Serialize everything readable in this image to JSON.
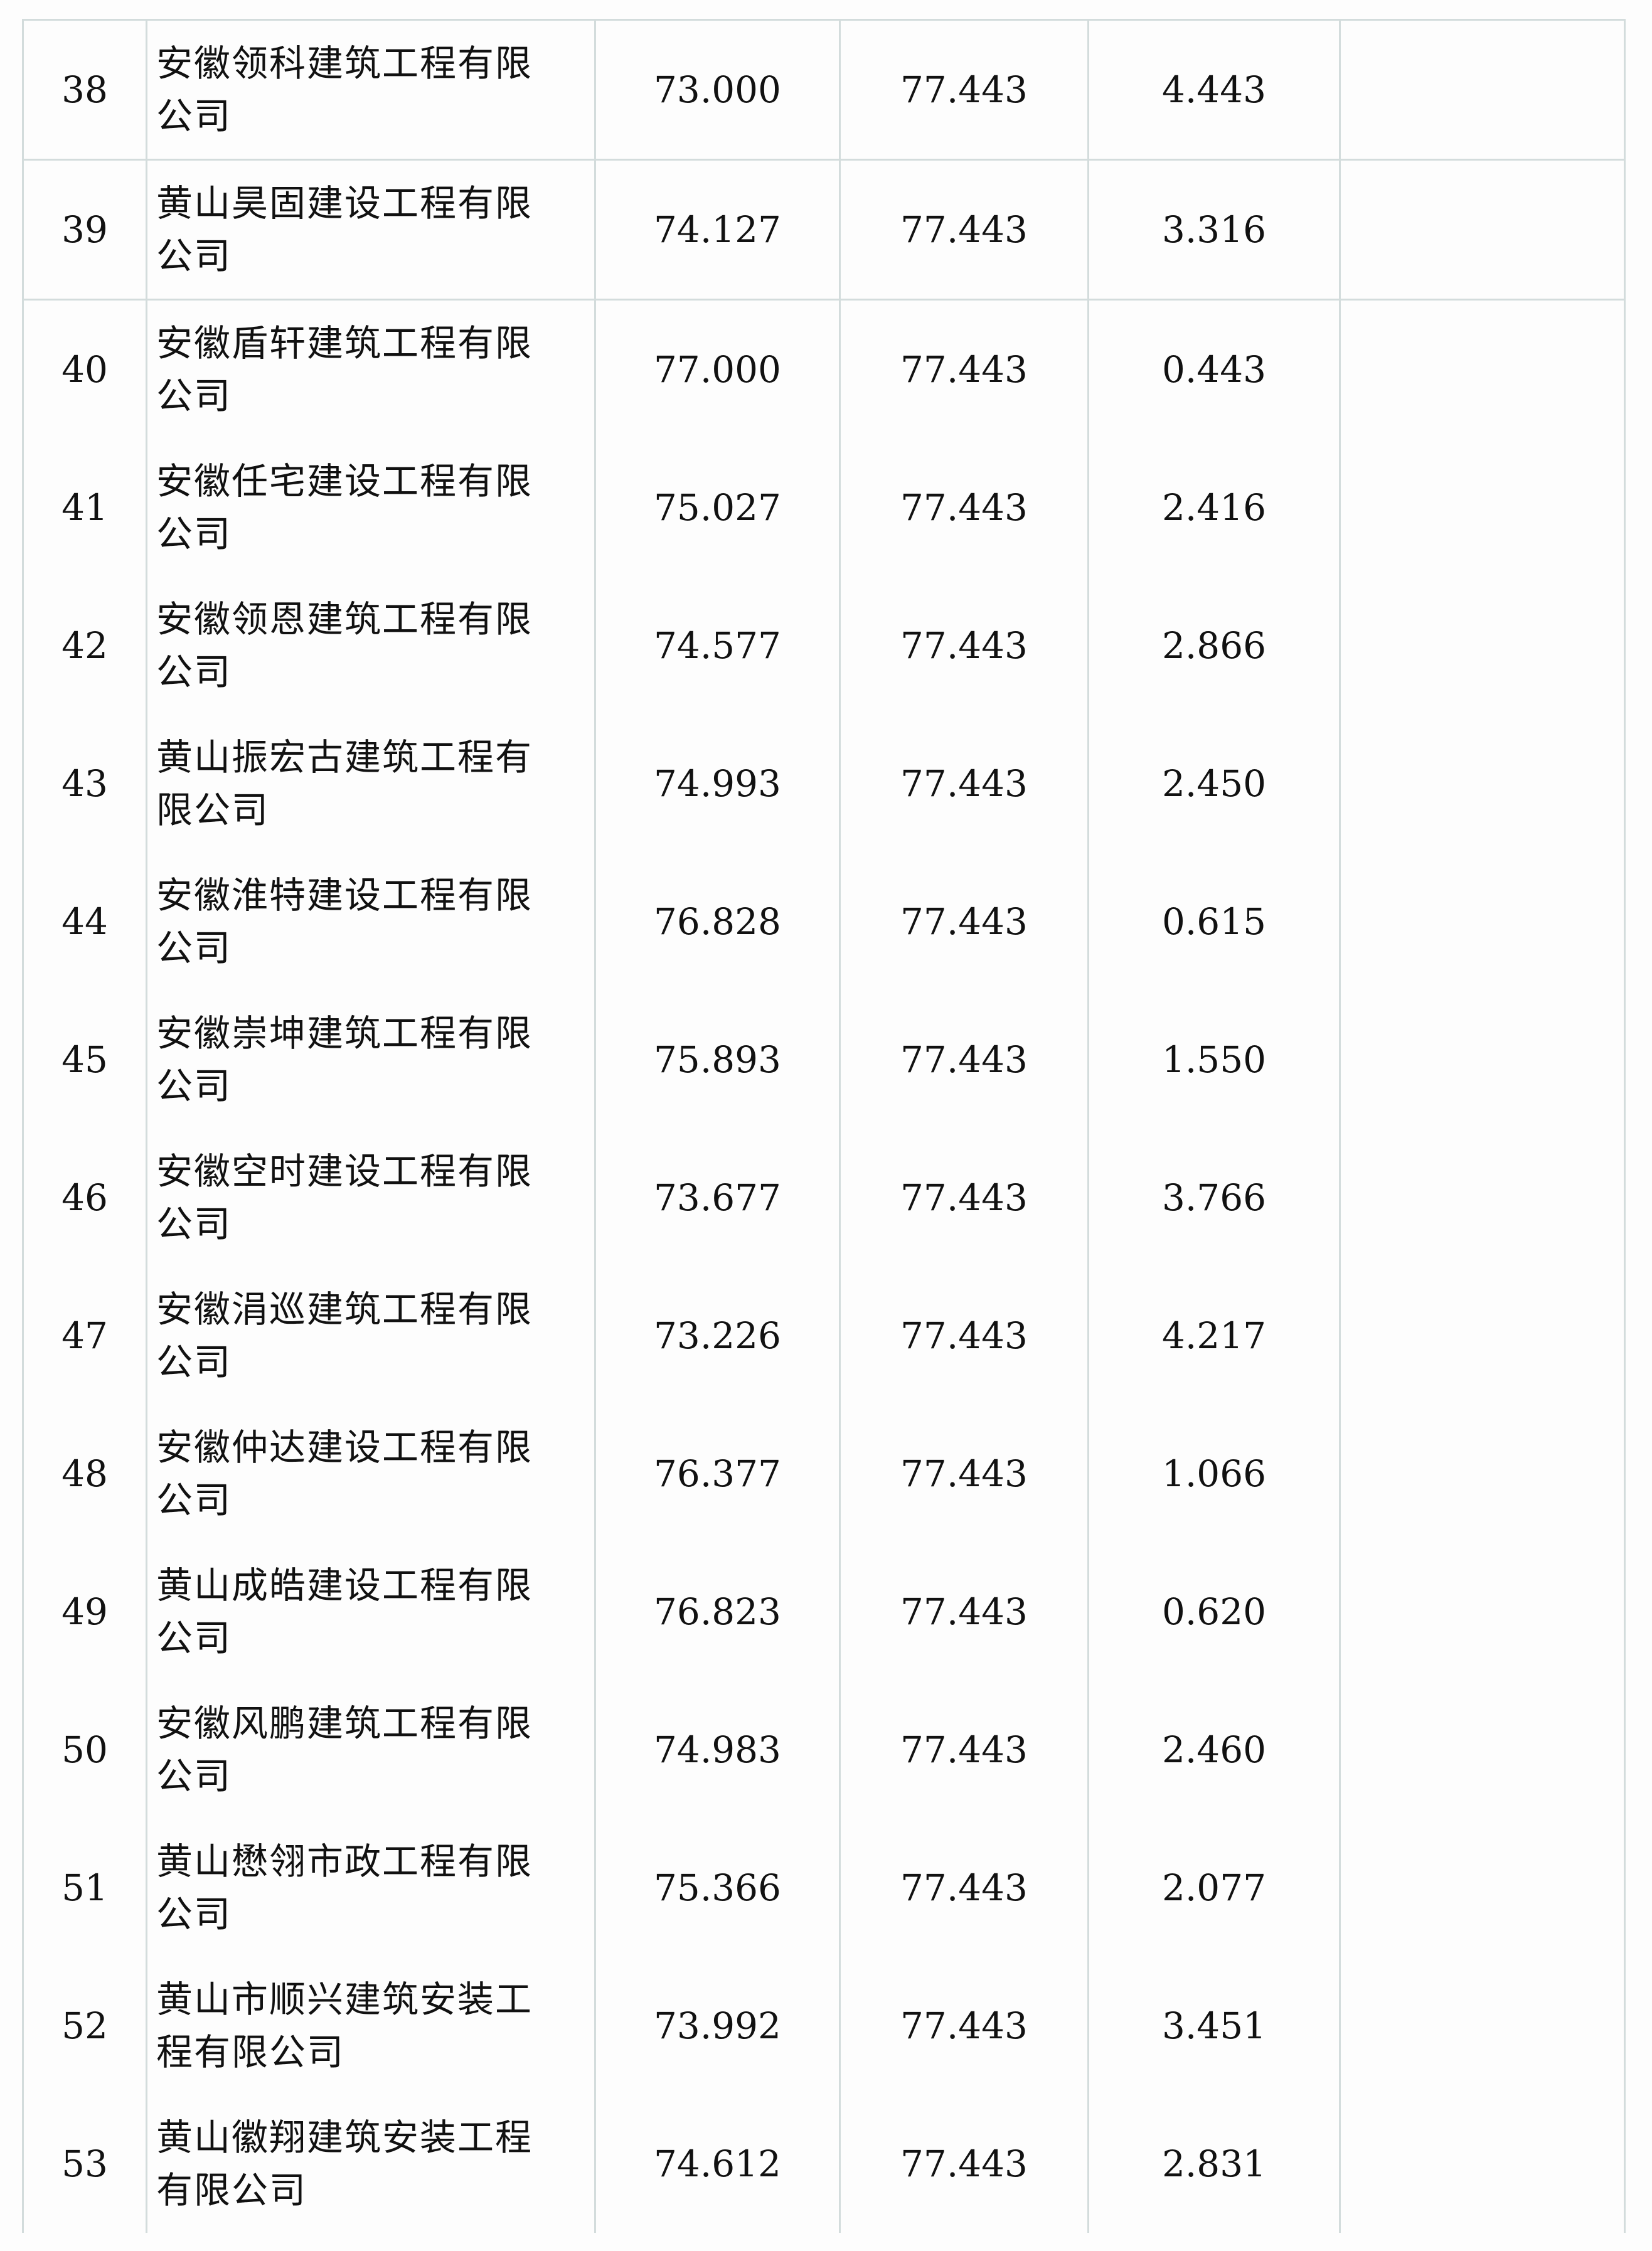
{
  "rows": [
    {
      "no": "38",
      "name": "安徽领科建筑工程有限公司",
      "score": "73.000",
      "base": "77.443",
      "diff": "4.443",
      "note": ""
    },
    {
      "no": "39",
      "name": "黄山昊固建设工程有限公司",
      "score": "74.127",
      "base": "77.443",
      "diff": "3.316",
      "note": ""
    },
    {
      "no": "40",
      "name": "安徽盾轩建筑工程有限公司",
      "score": "77.000",
      "base": "77.443",
      "diff": "0.443",
      "note": ""
    },
    {
      "no": "41",
      "name": "安徽任宅建设工程有限公司",
      "score": "75.027",
      "base": "77.443",
      "diff": "2.416",
      "note": ""
    },
    {
      "no": "42",
      "name": "安徽领恩建筑工程有限公司",
      "score": "74.577",
      "base": "77.443",
      "diff": "2.866",
      "note": ""
    },
    {
      "no": "43",
      "name": "黄山振宏古建筑工程有限公司",
      "score": "74.993",
      "base": "77.443",
      "diff": "2.450",
      "note": ""
    },
    {
      "no": "44",
      "name": "安徽淮特建设工程有限公司",
      "score": "76.828",
      "base": "77.443",
      "diff": "0.615",
      "note": ""
    },
    {
      "no": "45",
      "name": "安徽崇坤建筑工程有限公司",
      "score": "75.893",
      "base": "77.443",
      "diff": "1.550",
      "note": ""
    },
    {
      "no": "46",
      "name": "安徽空时建设工程有限公司",
      "score": "73.677",
      "base": "77.443",
      "diff": "3.766",
      "note": ""
    },
    {
      "no": "47",
      "name": "安徽涓巡建筑工程有限公司",
      "score": "73.226",
      "base": "77.443",
      "diff": "4.217",
      "note": ""
    },
    {
      "no": "48",
      "name": "安徽仲达建设工程有限公司",
      "score": "76.377",
      "base": "77.443",
      "diff": "1.066",
      "note": ""
    },
    {
      "no": "49",
      "name": "黄山成皓建设工程有限公司",
      "score": "76.823",
      "base": "77.443",
      "diff": "0.620",
      "note": ""
    },
    {
      "no": "50",
      "name": "安徽风鹏建筑工程有限公司",
      "score": "74.983",
      "base": "77.443",
      "diff": "2.460",
      "note": ""
    },
    {
      "no": "51",
      "name": "黄山懋翎市政工程有限公司",
      "score": "75.366",
      "base": "77.443",
      "diff": "2.077",
      "note": ""
    },
    {
      "no": "52",
      "name": "黄山市顺兴建筑安装工程有限公司",
      "score": "73.992",
      "base": "77.443",
      "diff": "3.451",
      "note": ""
    },
    {
      "no": "53",
      "name": "黄山徽翔建筑安装工程有限公司",
      "score": "74.612",
      "base": "77.443",
      "diff": "2.831",
      "note": ""
    }
  ]
}
